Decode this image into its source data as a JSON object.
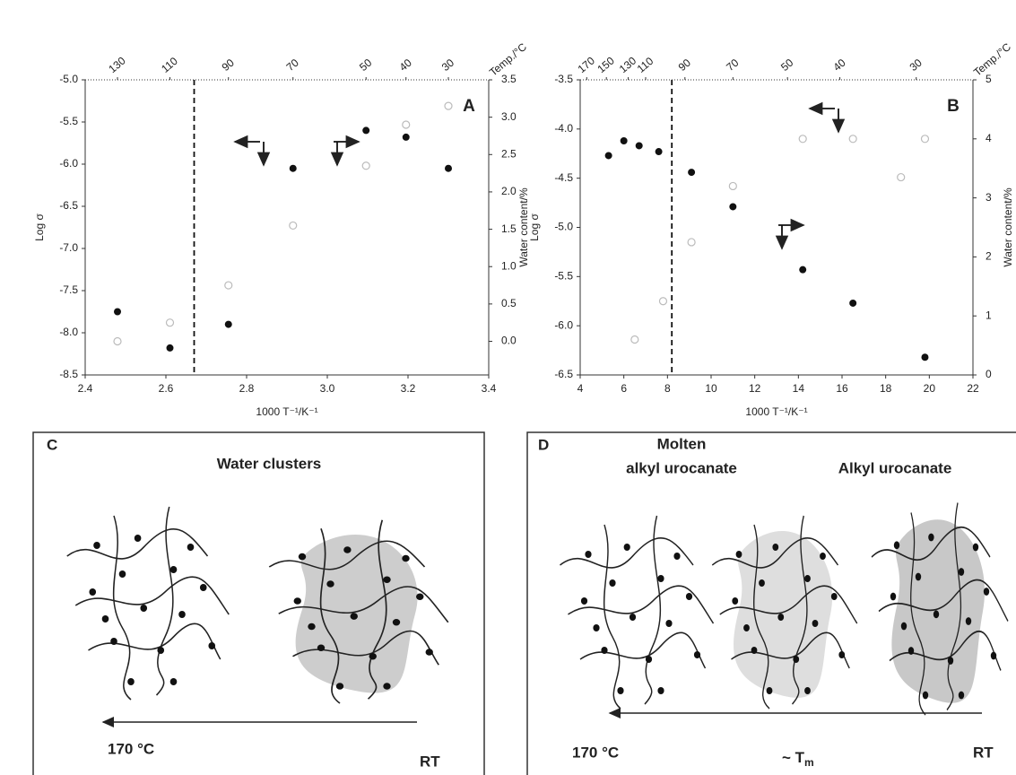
{
  "chart_data": [
    {
      "type": "scatter",
      "panel": "A",
      "xlabel": "1000 T⁻¹/K⁻¹",
      "ylabel": "Log σ",
      "y2label": "Water content/%",
      "x2label": "Temp./°C",
      "xlim": [
        2.4,
        3.4
      ],
      "xticks": [
        2.4,
        2.6,
        2.8,
        {
          "value": 3,
          "label": "3.0"
        },
        3.2,
        3.4
      ],
      "ylim": [
        -8.5,
        -5
      ],
      "yticks": [
        {
          "value": -8.5,
          "label": "-8.5"
        },
        {
          "value": -8,
          "label": "-8.0"
        },
        -7.5,
        {
          "value": -7,
          "label": "-7.0"
        },
        -6.5,
        {
          "value": -6,
          "label": "-6.0"
        },
        -5.5,
        {
          "value": -5,
          "label": "-5.0"
        }
      ],
      "y2lim": [
        -0.45,
        3.5
      ],
      "y2ticks": [
        {
          "value": 0,
          "label": "0.0"
        },
        0.5,
        {
          "value": 1,
          "label": "1.0"
        },
        1.5,
        {
          "value": 2,
          "label": "2.0"
        },
        2.5,
        {
          "value": 3,
          "label": "3.0"
        },
        3.5
      ],
      "x2ticks": [
        {
          "value": 2.48,
          "label": "130"
        },
        {
          "value": 2.61,
          "label": "110"
        },
        {
          "value": 2.755,
          "label": "90"
        },
        {
          "value": 2.915,
          "label": "70"
        },
        {
          "value": 3.096,
          "label": "50"
        },
        {
          "value": 3.195,
          "label": "40"
        },
        {
          "value": 3.3,
          "label": "30"
        }
      ],
      "vline": 2.67,
      "series": [
        {
          "color": "#111111",
          "marker": "filled",
          "x": [
            2.48,
            2.61,
            2.755,
            2.915,
            3.096,
            3.195,
            3.3
          ],
          "values": [
            -7.75,
            -8.18,
            -7.9,
            -6.05,
            -5.6,
            -5.68,
            -6.05
          ]
        },
        {
          "color": "#bbbbbb",
          "marker": "open",
          "axis": "y2",
          "x": [
            2.48,
            2.61,
            2.755,
            2.915,
            3.096,
            3.195,
            3.3
          ],
          "values": [
            0.0,
            0.25,
            0.75,
            1.55,
            2.35,
            2.9,
            3.15
          ]
        }
      ]
    },
    {
      "type": "scatter",
      "panel": "B",
      "xlabel": "1000 T⁻¹/K⁻¹",
      "ylabel": "Log σ",
      "y2label": "Water content/%",
      "x2label": "Temp./°C",
      "xlim": [
        4,
        22
      ],
      "xticks": [
        4,
        6,
        8,
        10,
        12,
        14,
        16,
        18,
        20,
        22
      ],
      "ylim": [
        -6.5,
        -3.5
      ],
      "yticks": [
        -6.5,
        {
          "value": -6,
          "label": "-6.0"
        },
        -5.5,
        {
          "value": -5,
          "label": "-5.0"
        },
        -4.5,
        {
          "value": -4,
          "label": "-4.0"
        },
        -3.5
      ],
      "y2lim": [
        0,
        5
      ],
      "y2ticks": [
        0,
        1,
        2,
        3,
        4,
        5
      ],
      "x2ticks": [
        {
          "value": 4.3,
          "label": "170"
        },
        {
          "value": 5.2,
          "label": "150"
        },
        {
          "value": 6.2,
          "label": "130"
        },
        {
          "value": 7.0,
          "label": "110"
        },
        {
          "value": 8.8,
          "label": "90"
        },
        {
          "value": 11.0,
          "label": "70"
        },
        {
          "value": 13.5,
          "label": "50"
        },
        {
          "value": 15.9,
          "label": "40"
        },
        {
          "value": 19.4,
          "label": "30"
        }
      ],
      "vline": 8.2,
      "series": [
        {
          "color": "#111111",
          "marker": "filled",
          "x": [
            5.3,
            6.0,
            6.7,
            7.6,
            9.1,
            11.0,
            14.2,
            16.5,
            19.8
          ],
          "values": [
            -4.27,
            -4.12,
            -4.17,
            -4.23,
            -4.44,
            -4.79,
            -5.43,
            -5.77,
            -6.32
          ]
        },
        {
          "color": "#bbbbbb",
          "marker": "open",
          "axis": "y2",
          "x": [
            6.5,
            7.8,
            9.1,
            11.0,
            14.2,
            16.5,
            18.7,
            19.8
          ],
          "values": [
            0.6,
            1.25,
            2.25,
            3.2,
            4.0,
            4.0,
            3.35,
            4.0
          ]
        }
      ]
    }
  ],
  "panels": [
    {
      "letter": "C",
      "title": "Water clusters",
      "left": "170 °C",
      "right": "RT"
    },
    {
      "letter": "D",
      "title_a1": "Molten",
      "title_a2": "alkyl urocanate",
      "title_b": "Alkyl urocanate",
      "left": "170 °C",
      "mid_a": "~ T",
      "mid_b": "m",
      "right": "RT"
    }
  ]
}
